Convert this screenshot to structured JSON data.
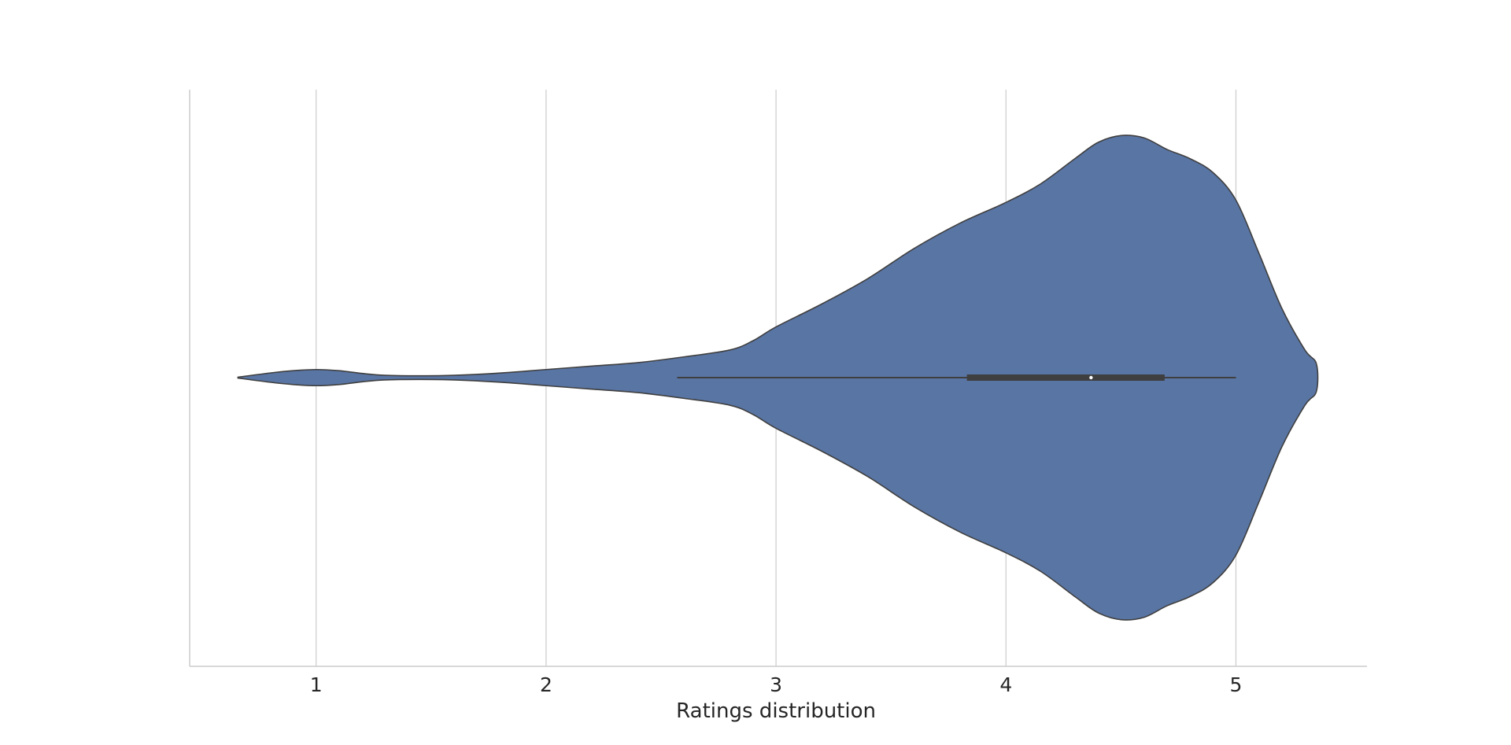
{
  "chart_data": {
    "type": "violin",
    "orientation": "horizontal",
    "title": "",
    "xlabel": "Ratings distribution",
    "ylabel": "",
    "xlim": [
      0.45,
      5.57
    ],
    "xticks": [
      1,
      2,
      3,
      4,
      5
    ],
    "xtick_labels": [
      "1",
      "2",
      "3",
      "4",
      "5"
    ],
    "grid": "vertical",
    "color": "#5975a4",
    "edge_color": "#3f3f3f",
    "density": {
      "x": [
        0.66,
        0.8,
        0.9,
        1.0,
        1.1,
        1.2,
        1.3,
        1.45,
        1.6,
        1.8,
        2.0,
        2.2,
        2.4,
        2.6,
        2.8,
        2.9,
        3.0,
        3.2,
        3.4,
        3.6,
        3.8,
        4.0,
        4.15,
        4.3,
        4.4,
        4.5,
        4.6,
        4.7,
        4.8,
        4.9,
        5.0,
        5.1,
        5.2,
        5.3,
        5.35
      ],
      "half_width": [
        0.002,
        0.02,
        0.03,
        0.035,
        0.03,
        0.018,
        0.01,
        0.008,
        0.01,
        0.02,
        0.035,
        0.05,
        0.065,
        0.09,
        0.12,
        0.16,
        0.22,
        0.32,
        0.43,
        0.56,
        0.67,
        0.76,
        0.84,
        0.95,
        1.02,
        1.05,
        1.04,
        0.99,
        0.95,
        0.89,
        0.77,
        0.54,
        0.3,
        0.12,
        0.06
      ]
    },
    "box": {
      "whisker_low": 2.57,
      "q1": 3.83,
      "median": 4.37,
      "q3": 4.69,
      "whisker_high": 5.0
    }
  }
}
